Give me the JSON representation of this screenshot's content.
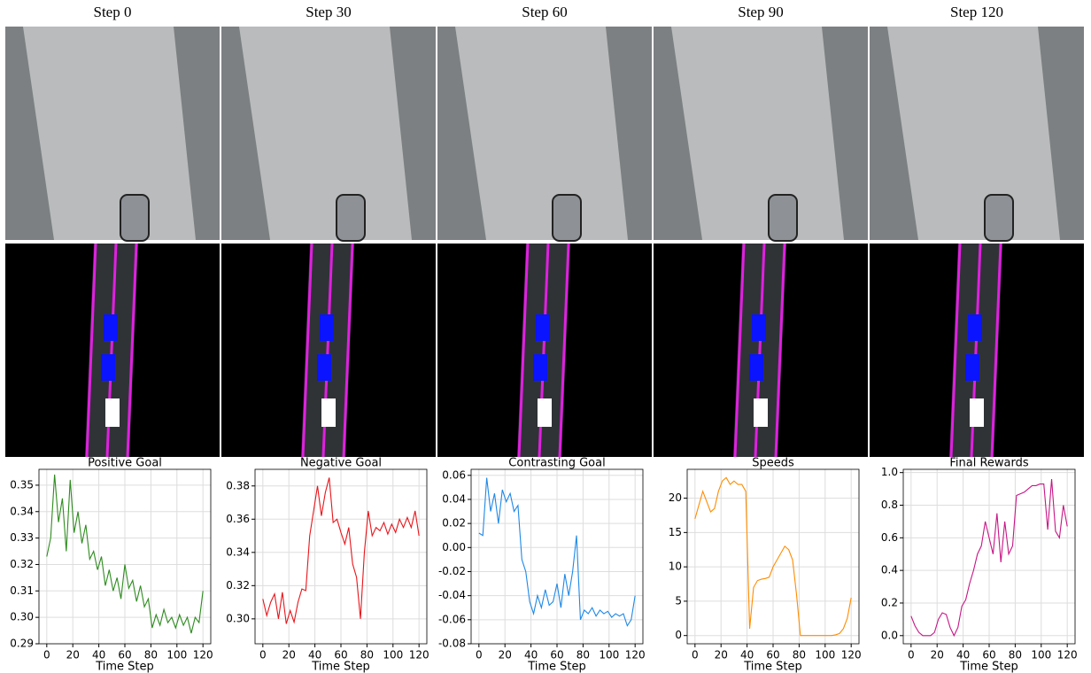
{
  "steps": [
    "Step 0",
    "Step 30",
    "Step 60",
    "Step 90",
    "Step 120"
  ],
  "chart_data": [
    {
      "type": "line",
      "title": "Positive Goal",
      "xlabel": "Time Step",
      "grid": true,
      "x": [
        0,
        3,
        6,
        9,
        12,
        15,
        18,
        21,
        24,
        27,
        30,
        33,
        36,
        39,
        42,
        45,
        48,
        51,
        54,
        57,
        60,
        63,
        66,
        69,
        72,
        75,
        78,
        81,
        84,
        87,
        90,
        93,
        96,
        99,
        102,
        105,
        108,
        111,
        114,
        117,
        120
      ],
      "series": [
        {
          "color": "#2e8b1f",
          "values": [
            0.323,
            0.33,
            0.354,
            0.336,
            0.345,
            0.325,
            0.352,
            0.332,
            0.34,
            0.328,
            0.335,
            0.322,
            0.325,
            0.318,
            0.323,
            0.312,
            0.318,
            0.31,
            0.315,
            0.307,
            0.32,
            0.311,
            0.314,
            0.306,
            0.312,
            0.304,
            0.307,
            0.296,
            0.301,
            0.297,
            0.303,
            0.298,
            0.3,
            0.296,
            0.301,
            0.297,
            0.3,
            0.294,
            0.3,
            0.298,
            0.31
          ]
        }
      ],
      "xlim": [
        -6,
        126
      ],
      "xticks": [
        0,
        20,
        40,
        60,
        80,
        100,
        120
      ],
      "ylim": [
        0.29,
        0.356
      ],
      "yticks": [
        0.29,
        {
          "value": 0.3,
          "label": "0.30"
        },
        0.31,
        0.32,
        0.33,
        0.34,
        0.35
      ]
    },
    {
      "type": "line",
      "title": "Negative Goal",
      "xlabel": "Time Step",
      "grid": true,
      "x": [
        0,
        3,
        6,
        9,
        12,
        15,
        18,
        21,
        24,
        27,
        30,
        33,
        36,
        39,
        42,
        45,
        48,
        51,
        54,
        57,
        60,
        63,
        66,
        69,
        72,
        75,
        78,
        81,
        84,
        87,
        90,
        93,
        96,
        99,
        102,
        105,
        108,
        111,
        114,
        117,
        120
      ],
      "series": [
        {
          "color": "#e8141a",
          "values": [
            0.312,
            0.302,
            0.31,
            0.315,
            0.3,
            0.316,
            0.297,
            0.305,
            0.298,
            0.31,
            0.318,
            0.317,
            0.35,
            0.365,
            0.38,
            0.362,
            0.376,
            0.385,
            0.358,
            0.36,
            0.352,
            0.345,
            0.355,
            0.333,
            0.325,
            0.3,
            0.34,
            0.365,
            0.35,
            0.355,
            0.353,
            0.358,
            0.351,
            0.357,
            0.352,
            0.36,
            0.355,
            0.361,
            0.355,
            0.365,
            0.35
          ]
        }
      ],
      "xlim": [
        -6,
        126
      ],
      "xticks": [
        0,
        20,
        40,
        60,
        80,
        100,
        120
      ],
      "ylim": [
        0.285,
        0.39
      ],
      "yticks": [
        {
          "value": 0.3,
          "label": "0.30"
        },
        0.32,
        0.34,
        0.36,
        0.38
      ]
    },
    {
      "type": "line",
      "title": "Contrasting Goal",
      "xlabel": "Time Step",
      "grid": true,
      "x": [
        0,
        3,
        6,
        9,
        12,
        15,
        18,
        21,
        24,
        27,
        30,
        33,
        36,
        39,
        42,
        45,
        48,
        51,
        54,
        57,
        60,
        63,
        66,
        69,
        72,
        75,
        78,
        81,
        84,
        87,
        90,
        93,
        96,
        99,
        102,
        105,
        108,
        111,
        114,
        117,
        120
      ],
      "series": [
        {
          "color": "#1e88e5",
          "values": [
            0.012,
            0.01,
            0.058,
            0.03,
            0.045,
            0.02,
            0.048,
            0.038,
            0.045,
            0.03,
            0.035,
            -0.01,
            -0.02,
            -0.045,
            -0.055,
            -0.04,
            -0.05,
            -0.035,
            -0.048,
            -0.045,
            -0.03,
            -0.05,
            -0.022,
            -0.04,
            -0.02,
            0.01,
            -0.06,
            -0.052,
            -0.055,
            -0.05,
            -0.057,
            -0.052,
            -0.055,
            -0.053,
            -0.058,
            -0.055,
            -0.057,
            -0.055,
            -0.065,
            -0.06,
            -0.04
          ]
        }
      ],
      "xlim": [
        -6,
        126
      ],
      "xticks": [
        0,
        20,
        40,
        60,
        80,
        100,
        120
      ],
      "ylim": [
        -0.08,
        0.065
      ],
      "yticks": [
        -0.08,
        -0.06,
        -0.04,
        -0.02,
        {
          "value": 0,
          "label": "0.00"
        },
        0.02,
        0.04,
        0.06
      ]
    },
    {
      "type": "line",
      "title": "Speeds",
      "xlabel": "Time Step",
      "grid": true,
      "x": [
        0,
        3,
        6,
        9,
        12,
        15,
        18,
        21,
        24,
        27,
        30,
        33,
        36,
        39,
        42,
        45,
        48,
        51,
        54,
        57,
        60,
        63,
        66,
        69,
        72,
        75,
        78,
        81,
        84,
        87,
        90,
        93,
        96,
        99,
        102,
        105,
        108,
        111,
        114,
        117,
        120
      ],
      "series": [
        {
          "color": "#ff8c00",
          "values": [
            17,
            19,
            21,
            19.5,
            18,
            18.5,
            21,
            22.5,
            23,
            22,
            22.5,
            22,
            22,
            21,
            1,
            7,
            8,
            8.2,
            8.3,
            8.5,
            10,
            11,
            12,
            13,
            12.5,
            11,
            6,
            0,
            0,
            0,
            0,
            0,
            0,
            0,
            0,
            0,
            0.1,
            0.3,
            1,
            2.5,
            5.5
          ]
        }
      ],
      "xlim": [
        -6,
        126
      ],
      "xticks": [
        0,
        20,
        40,
        60,
        80,
        100,
        120
      ],
      "ylim": [
        -1.2,
        24.2
      ],
      "yticks": [
        0,
        5,
        10,
        15,
        20
      ]
    },
    {
      "type": "line",
      "title": "Final Rewards",
      "xlabel": "Time Step",
      "grid": true,
      "x": [
        0,
        3,
        6,
        9,
        12,
        15,
        18,
        21,
        24,
        27,
        30,
        33,
        36,
        39,
        42,
        45,
        48,
        51,
        54,
        57,
        60,
        63,
        66,
        69,
        72,
        75,
        78,
        81,
        84,
        87,
        90,
        93,
        96,
        99,
        102,
        105,
        108,
        111,
        114,
        117,
        120
      ],
      "series": [
        {
          "color": "#c71585",
          "values": [
            0.12,
            0.06,
            0.02,
            0,
            0,
            0,
            0.02,
            0.1,
            0.14,
            0.13,
            0.05,
            0,
            0.05,
            0.18,
            0.22,
            0.32,
            0.4,
            0.5,
            0.55,
            0.7,
            0.6,
            0.5,
            0.75,
            0.45,
            0.7,
            0.5,
            0.55,
            0.86,
            0.87,
            0.88,
            0.9,
            0.92,
            0.92,
            0.93,
            0.93,
            0.65,
            0.96,
            0.64,
            0.6,
            0.8,
            0.67
          ]
        }
      ],
      "xlim": [
        -6,
        126
      ],
      "xticks": [
        0,
        20,
        40,
        60,
        80,
        100,
        120
      ],
      "ylim": [
        -0.05,
        1.02
      ],
      "yticks": [
        {
          "value": 0,
          "label": "0.0"
        },
        0.2,
        0.4,
        0.6,
        0.8,
        {
          "value": 1,
          "label": "1.0"
        }
      ]
    }
  ]
}
